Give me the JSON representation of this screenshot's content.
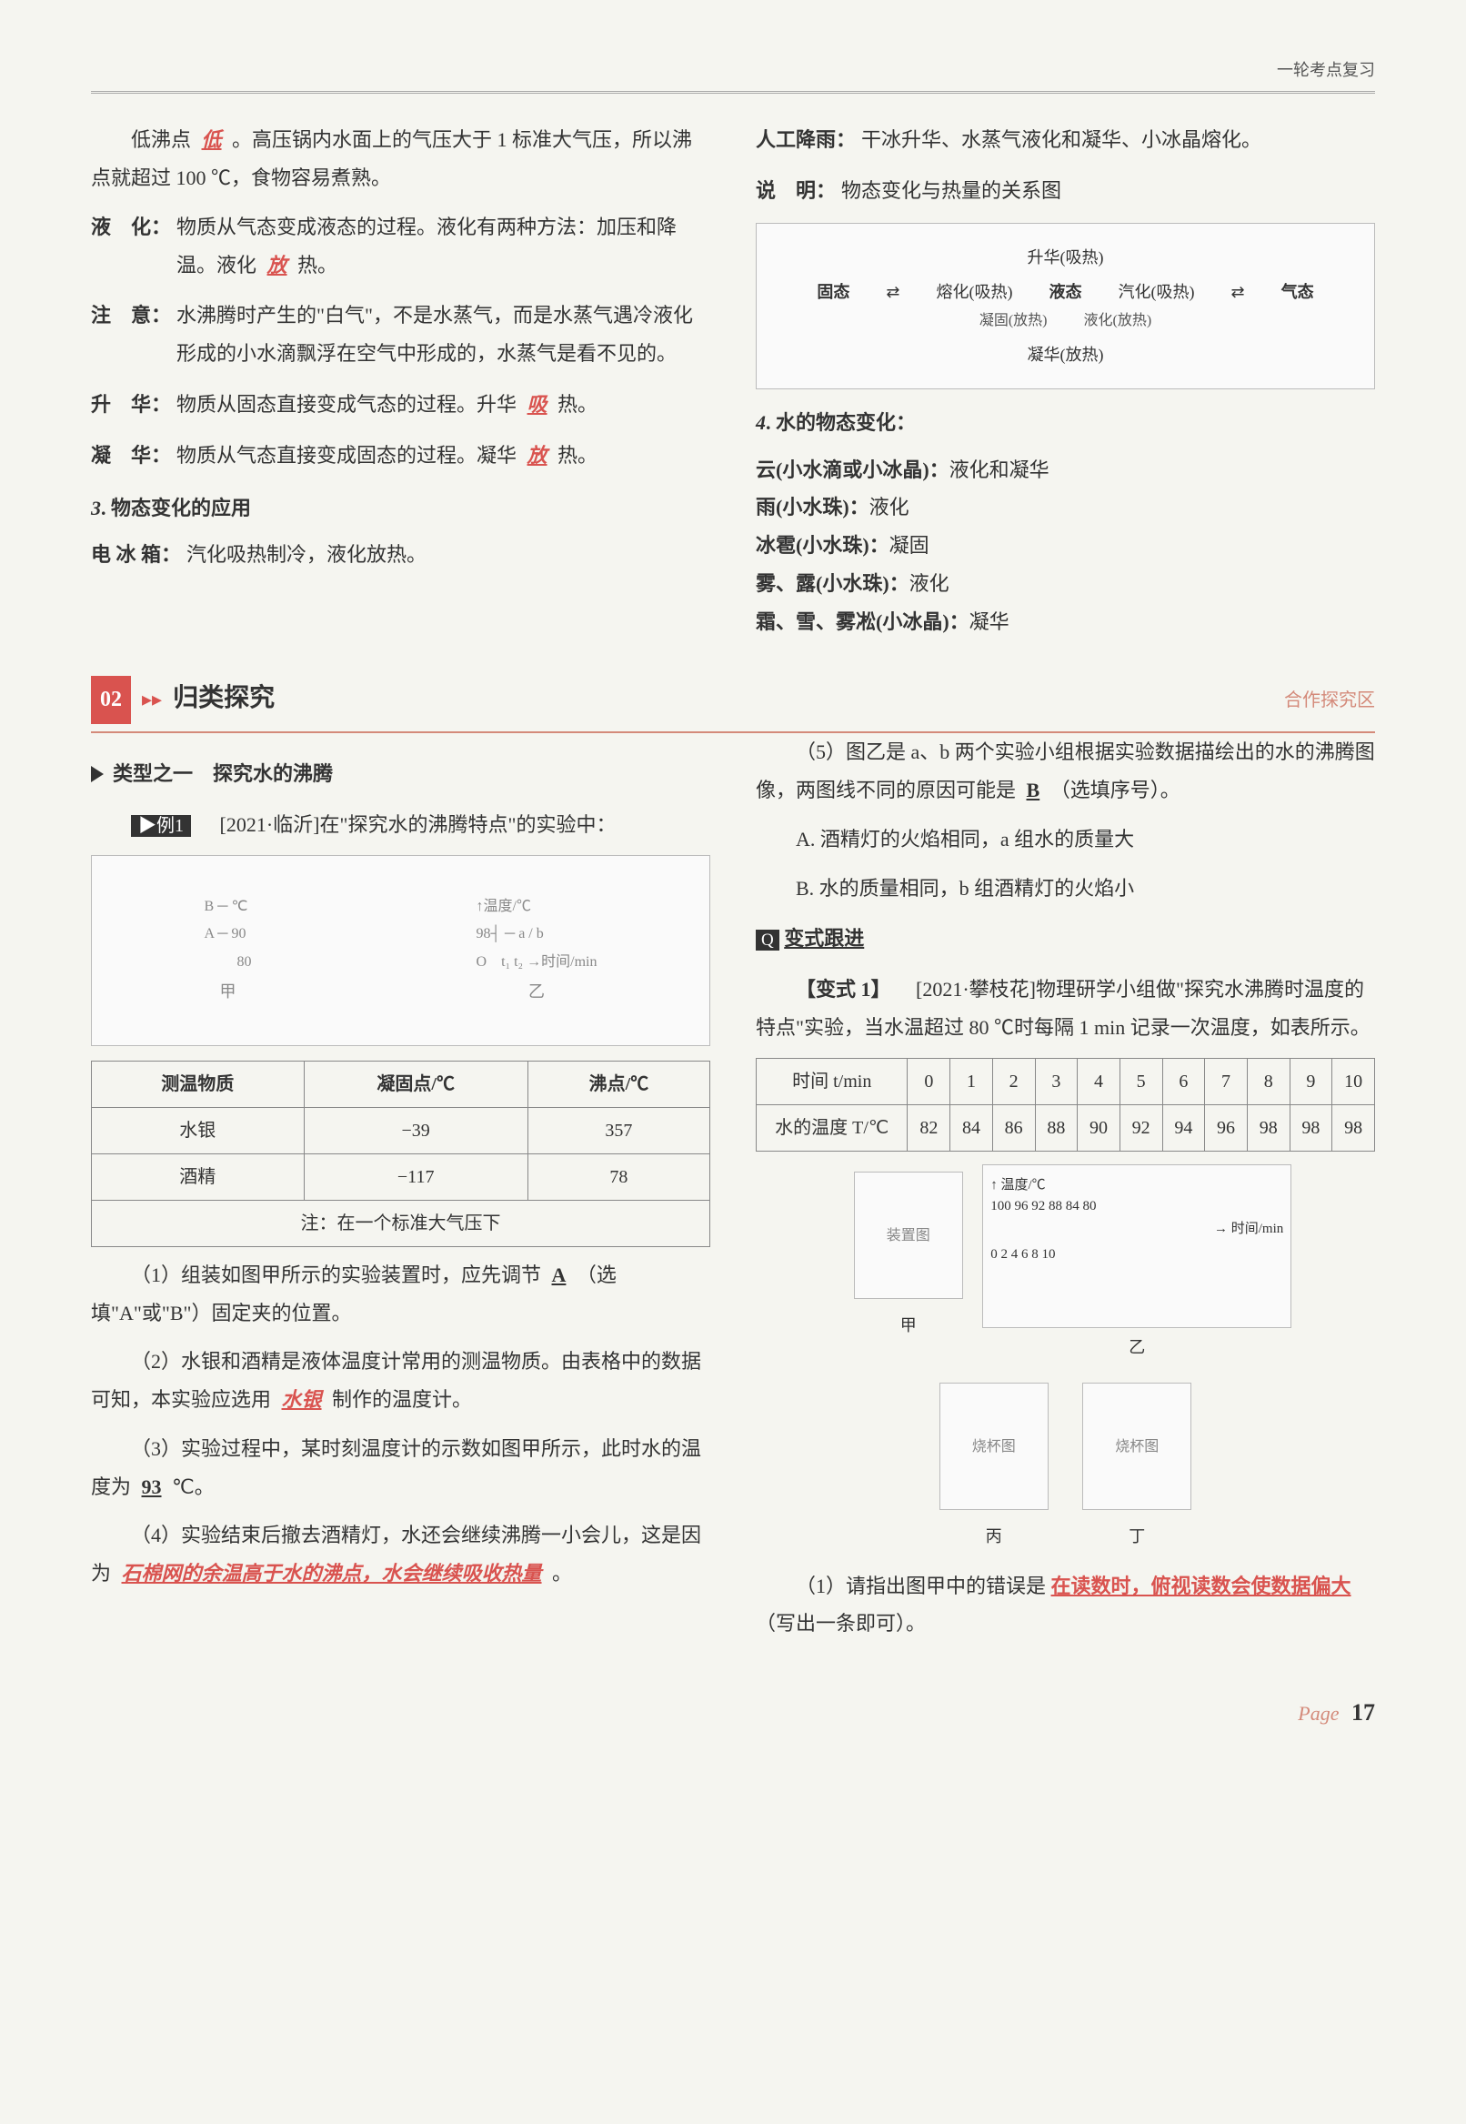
{
  "header": {
    "right": "一轮考点复习"
  },
  "top_left": {
    "boil_intro": "低沸点",
    "boil_blank": "低",
    "boil_rest": "。高压锅内水面上的气压大于 1 标准大气压，所以沸点就超过 100 ℃，食物容易煮熟。",
    "liquefy_label": "液　化：",
    "liquefy_text_a": "物质从气态变成液态的过程。液化有两种方法：加压和降温。液化",
    "liquefy_blank": "放",
    "liquefy_text_b": "热。",
    "note_label": "注　意：",
    "note_text": "水沸腾时产生的\"白气\"，不是水蒸气，而是水蒸气遇冷液化形成的小水滴飘浮在空气中形成的，水蒸气是看不见的。",
    "sublime_label": "升　华：",
    "sublime_text_a": "物质从固态直接变成气态的过程。升华",
    "sublime_blank": "吸",
    "sublime_text_b": "热。",
    "desub_label": "凝　华：",
    "desub_text_a": "物质从气态直接变成固态的过程。凝华",
    "desub_blank": "放",
    "desub_text_b": "热。",
    "sec3_head": "3. 物态变化的应用",
    "fridge_label": "电 冰 箱：",
    "fridge_text": "汽化吸热制冷，液化放热。"
  },
  "top_right": {
    "rain_label": "人工降雨：",
    "rain_text": "干冰升华、水蒸气液化和凝华、小冰晶熔化。",
    "explain_label": "说　明：",
    "explain_text": "物态变化与热量的关系图",
    "diagram": {
      "top": "升华(吸热)",
      "left": "固态",
      "melt": "熔化(吸热)",
      "mid": "液态",
      "vapor": "汽化(吸热)",
      "right": "气态",
      "solidify": "凝固(放热)",
      "liquefy": "液化(放热)",
      "bottom": "凝华(放热)"
    },
    "sec4_head": "4. 水的物态变化：",
    "items": [
      {
        "name": "云(小水滴或小冰晶)：",
        "proc": "液化和凝华"
      },
      {
        "name": "雨(小水珠)：",
        "proc": "液化"
      },
      {
        "name": "冰雹(小水珠)：",
        "proc": "凝固"
      },
      {
        "name": "雾、露(小水珠)：",
        "proc": "液化"
      },
      {
        "name": "霜、雪、雾凇(小冰晶)：",
        "proc": "凝华"
      }
    ]
  },
  "section_bar": {
    "num": "02",
    "title": "归类探究",
    "right": "合作探究区"
  },
  "bottom_left": {
    "type_label": "类型之一　探究水的沸腾",
    "example_tag": "▶例1",
    "example_intro": "　[2021·临沂]在\"探究水的沸腾特点\"的实验中：",
    "fig_labels": {
      "left": "甲",
      "right": "乙",
      "axis_y": "温度/℃",
      "axis_x": "时间/min",
      "y_vals": "98",
      "therm_vals": "90 / 80",
      "marks": "A / B / a / b / O / t1 / t2"
    },
    "table": {
      "cols": [
        "测温物质",
        "凝固点/℃",
        "沸点/℃"
      ],
      "rows": [
        [
          "水银",
          "−39",
          "357"
        ],
        [
          "酒精",
          "−117",
          "78"
        ]
      ],
      "note": "注：在一个标准大气压下"
    },
    "q1_a": "（1）组装如图甲所示的实验装置时，应先调节",
    "q1_ans": "A",
    "q1_b": "（选填\"A\"或\"B\"）固定夹的位置。",
    "q2_a": "（2）水银和酒精是液体温度计常用的测温物质。由表格中的数据可知，本实验应选用",
    "q2_ans": "水银",
    "q2_b": "制作的温度计。",
    "q3_a": "（3）实验过程中，某时刻温度计的示数如图甲所示，此时水的温度为",
    "q3_ans": "93",
    "q3_b": "℃。",
    "q4_a": "（4）实验结束后撤去酒精灯，水还会继续沸腾一小会儿，这是因为",
    "q4_ans": "石棉网的余温高于水的沸点，水会继续吸收热量",
    "q4_b": "。"
  },
  "bottom_right": {
    "q5_a": "（5）图乙是 a、b 两个实验小组根据实验数据描绘出的水的沸腾图像，两图线不同的原因可能是",
    "q5_ans": "B",
    "q5_b": "（选填序号）。",
    "opt_a": "A. 酒精灯的火焰相同，a 组水的质量大",
    "opt_b": "B. 水的质量相同，b 组酒精灯的火焰小",
    "variation_head": "变式跟进",
    "var_tag": "【变式 1】",
    "var_intro": "　[2021·攀枝花]物理研学小组做\"探究水沸腾时温度的特点\"实验，当水温超过 80 ℃时每隔 1 min 记录一次温度，如表所示。",
    "table": {
      "row1_label": "时间 t/min",
      "row1": [
        "0",
        "1",
        "2",
        "3",
        "4",
        "5",
        "6",
        "7",
        "8",
        "9",
        "10"
      ],
      "row2_label": "水的温度 T/℃",
      "row2": [
        "82",
        "84",
        "86",
        "88",
        "90",
        "92",
        "94",
        "96",
        "98",
        "98",
        "98"
      ]
    },
    "chart": {
      "y_label": "温度/℃",
      "y_ticks": [
        "100",
        "96",
        "92",
        "88",
        "84",
        "80"
      ],
      "x_label": "时间/min",
      "x_ticks": [
        "0",
        "2",
        "4",
        "6",
        "8",
        "10"
      ]
    },
    "fig_caps": {
      "a": "甲",
      "b": "乙",
      "c": "丙",
      "d": "丁"
    },
    "rq1_a": "（1）请指出图甲中的错误是",
    "rq1_ans": "在读数时，俯视读数会使数据偏大",
    "rq1_b": "（写出一条即可）。"
  },
  "footer": {
    "label": "Page",
    "num": "17"
  }
}
